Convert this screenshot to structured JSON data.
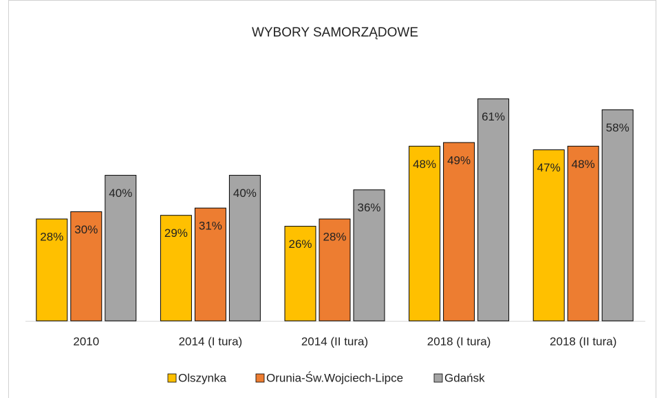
{
  "chart_data": {
    "type": "bar",
    "title": "WYBORY SAMORZĄDOWE",
    "categories": [
      "2010",
      "2014 (I tura)",
      "2014 (II tura)",
      "2018 (I tura)",
      "2018 (II tura)"
    ],
    "series": [
      {
        "name": "Olszynka",
        "color": "#ffc000",
        "values": [
          28,
          29,
          26,
          48,
          47
        ],
        "value_labels": [
          "28%",
          "29%",
          "26%",
          "48%",
          "47%"
        ]
      },
      {
        "name": "Orunia-Św.Wojciech-Lipce",
        "color": "#ed7d31",
        "values": [
          30,
          31,
          28,
          49,
          48
        ],
        "value_labels": [
          "30%",
          "31%",
          "28%",
          "49%",
          "48%"
        ]
      },
      {
        "name": "Gdańsk",
        "color": "#a5a5a5",
        "values": [
          40,
          40,
          36,
          61,
          58
        ],
        "value_labels": [
          "40%",
          "40%",
          "36%",
          "61%",
          "58%"
        ]
      }
    ],
    "ylim": [
      0,
      70
    ],
    "legend": "bottom"
  }
}
